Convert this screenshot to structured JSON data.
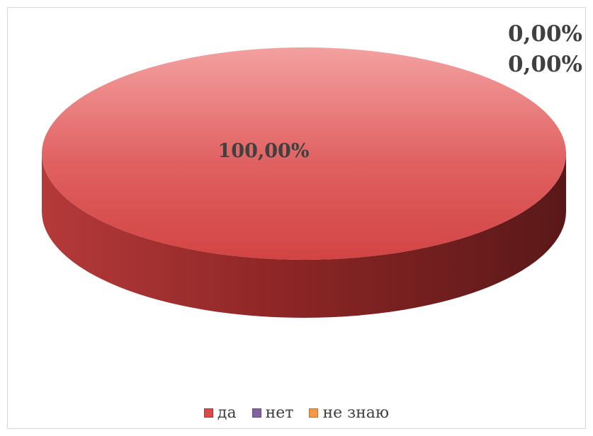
{
  "chart_data": {
    "type": "pie",
    "categories": [
      "да",
      "нет",
      "не знаю"
    ],
    "values": [
      100,
      0,
      0
    ],
    "labels": [
      "100,00%",
      "0,00%",
      "0,00%"
    ],
    "colors": [
      "#d94b4b",
      "#8064a2",
      "#f79646"
    ],
    "legend_position": "bottom",
    "style": "3d"
  }
}
